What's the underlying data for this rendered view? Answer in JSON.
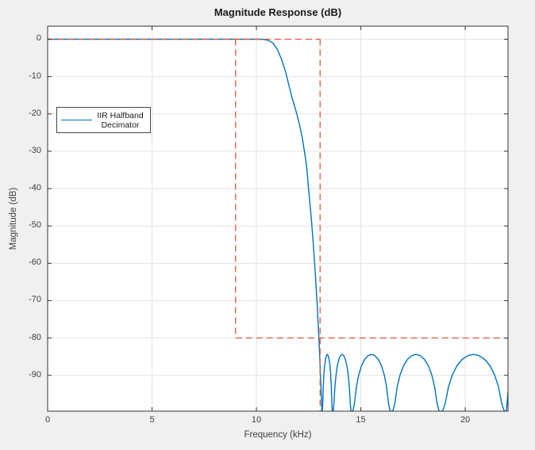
{
  "window": {
    "background": "#f0f0f0"
  },
  "title": "Magnitude Response (dB)",
  "axes": {
    "xlabel": "Frequency (kHz)",
    "ylabel": "Magnitude (dB)",
    "xtick_labels": [
      "0",
      "5",
      "10",
      "15",
      "20"
    ],
    "ytick_labels": [
      "0",
      "-10",
      "-20",
      "-30",
      "-40",
      "-50",
      "-60",
      "-70",
      "-80",
      "-90"
    ]
  },
  "legend": {
    "lines": [
      "IIR Halfband",
      "Decimator"
    ],
    "series_color": "#0072BD"
  },
  "colors": {
    "response_line": "#0072BD",
    "mask_line": "#DB5A3C",
    "grid": "#e3e3e3",
    "axis": "#333333",
    "plot_background": "#ffffff"
  },
  "chart_data": {
    "type": "line",
    "title": "Magnitude Response (dB)",
    "xlabel": "Frequency (kHz)",
    "ylabel": "Magnitude (dB)",
    "xlim": [
      0,
      22.05
    ],
    "ylim": [
      -99.6,
      3.5
    ],
    "xticks": [
      0,
      5,
      10,
      15,
      20
    ],
    "yticks": [
      0,
      -10,
      -20,
      -30,
      -40,
      -50,
      -60,
      -70,
      -80,
      -90
    ],
    "grid": true,
    "legend_position": "west",
    "series": [
      {
        "name": "IIR Halfband Decimator",
        "color": "#0072BD",
        "passband_db": 0,
        "passband_flat_until_khz": 10.3,
        "transition_points": [
          [
            10.3,
            -0.05
          ],
          [
            10.5,
            -0.2
          ],
          [
            10.65,
            -0.55
          ],
          [
            10.8,
            -1.1
          ],
          [
            11.0,
            -2.7
          ],
          [
            11.2,
            -5.3
          ],
          [
            11.4,
            -8.8
          ],
          [
            11.55,
            -12.2
          ],
          [
            11.7,
            -15.6
          ],
          [
            11.9,
            -19.3
          ],
          [
            12.05,
            -22.6
          ],
          [
            12.2,
            -26.5
          ],
          [
            12.3,
            -30.0
          ],
          [
            12.4,
            -33.8
          ],
          [
            12.5,
            -40.2
          ],
          [
            12.62,
            -47.5
          ],
          [
            12.72,
            -54.5
          ],
          [
            12.81,
            -62.0
          ],
          [
            12.9,
            -70.0
          ],
          [
            12.98,
            -78.5
          ],
          [
            13.03,
            -84.5
          ],
          [
            13.08,
            -92.0
          ]
        ],
        "stopband_nulls_khz": [
          13.14,
          13.65,
          14.56,
          16.46,
          18.82,
          21.97
        ],
        "stopband_ripple_peak_db": -84.4,
        "endpoint": [
          22.05,
          -94.5
        ]
      }
    ],
    "mask": {
      "name": "design-specification-mask",
      "color": "#DB5A3C",
      "line_style": "dashed",
      "passband_edge_khz": 9,
      "stopband_edge_khz": 13.05,
      "stopband_atten_db": -80,
      "segments": [
        [
          [
            0,
            0
          ],
          [
            13.05,
            0
          ]
        ],
        [
          [
            13.05,
            0
          ],
          [
            13.05,
            -99.6
          ]
        ],
        [
          [
            9,
            0
          ],
          [
            9,
            -80
          ]
        ],
        [
          [
            9,
            -80
          ],
          [
            22.05,
            -80
          ]
        ]
      ]
    }
  }
}
